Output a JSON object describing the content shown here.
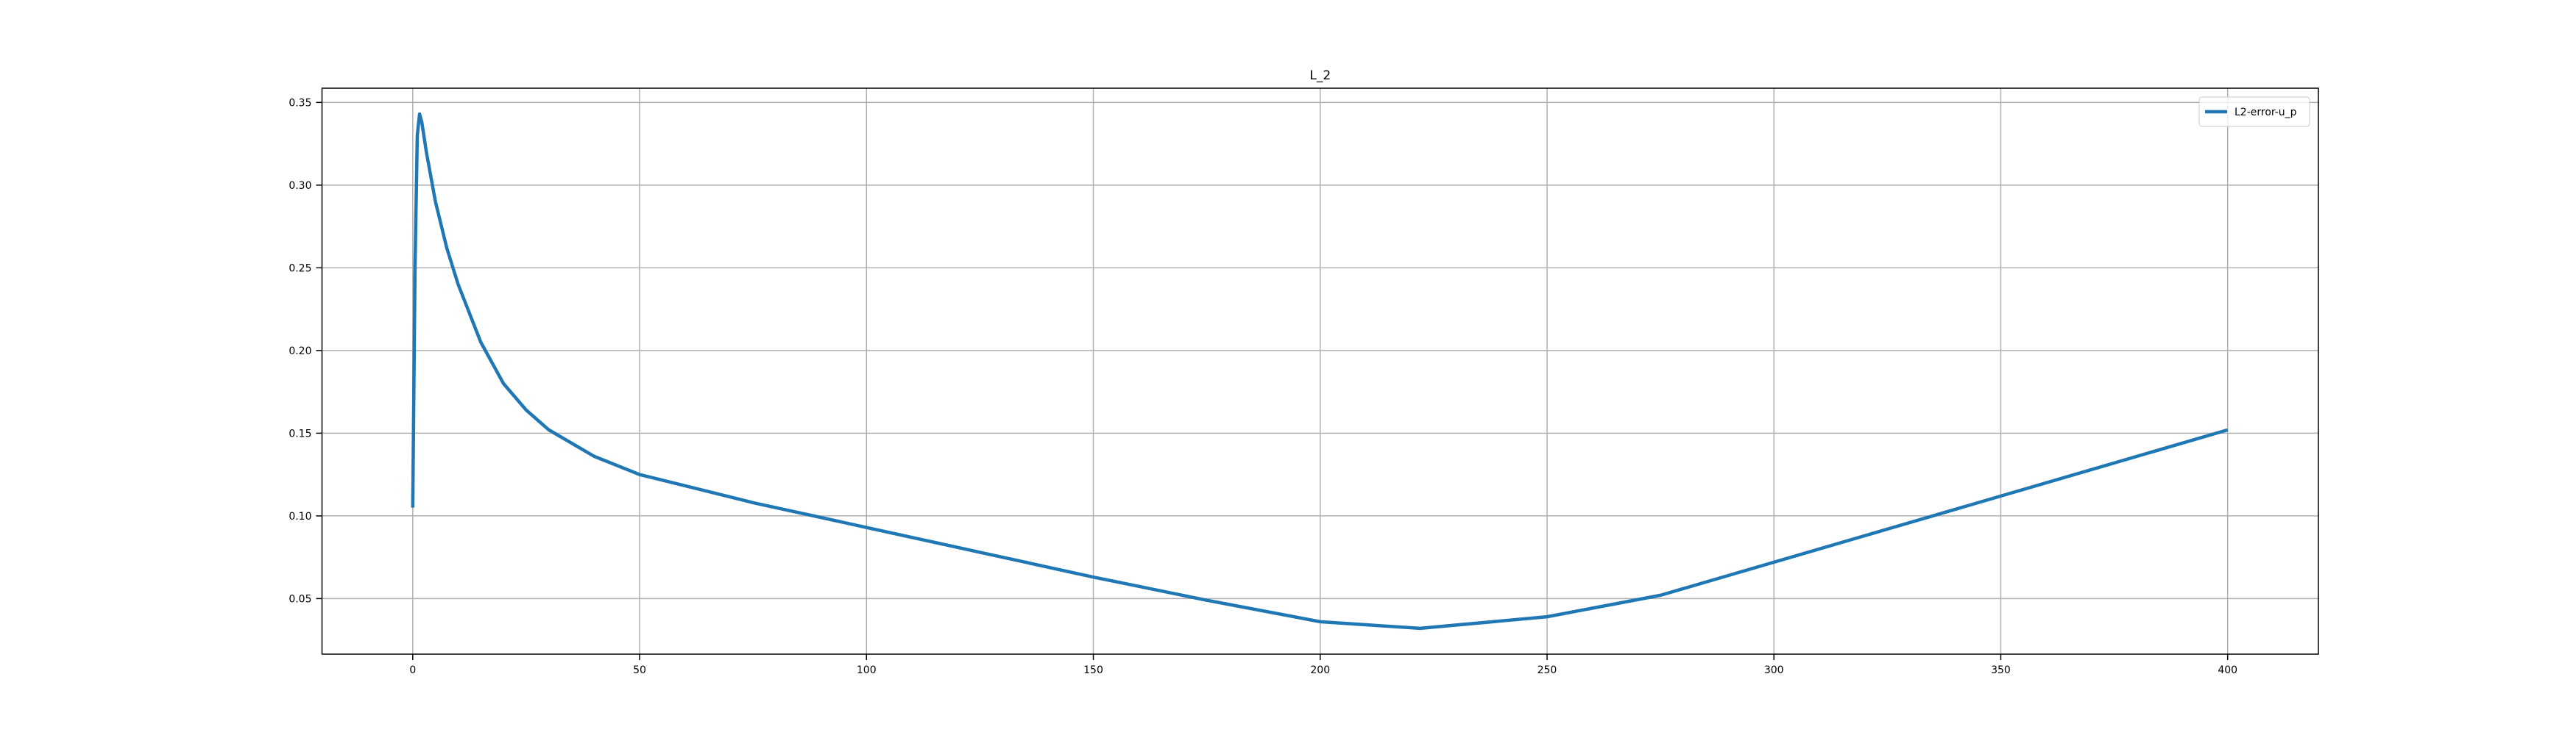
{
  "chart_data": {
    "type": "line",
    "title": "L_2",
    "x": [
      0,
      0.5,
      1,
      1.5,
      2,
      3,
      5,
      7.5,
      10,
      15,
      20,
      25,
      30,
      40,
      50,
      75,
      100,
      125,
      150,
      175,
      200,
      222,
      250,
      275,
      300,
      325,
      350,
      375,
      400
    ],
    "series": [
      {
        "name": "L2-error-u_p",
        "color": "#1f77b4",
        "values": [
          0.105,
          0.25,
          0.33,
          0.343,
          0.338,
          0.32,
          0.29,
          0.262,
          0.24,
          0.205,
          0.18,
          0.164,
          0.152,
          0.136,
          0.125,
          0.108,
          0.093,
          0.078,
          0.063,
          0.049,
          0.036,
          0.032,
          0.039,
          0.052,
          0.072,
          0.092,
          0.112,
          0.132,
          0.152
        ]
      }
    ],
    "xlim": [
      -20,
      420
    ],
    "ylim": [
      0.0164,
      0.3586
    ],
    "xticks": [
      0,
      50,
      100,
      150,
      200,
      250,
      300,
      350,
      400
    ],
    "yticks": [
      0.05,
      {
        "value": 0.1,
        "label": "0.10"
      },
      0.15,
      {
        "value": 0.2,
        "label": "0.20"
      },
      0.25,
      {
        "value": 0.3,
        "label": "0.30"
      },
      0.35
    ],
    "grid": true,
    "legend": "upper right"
  }
}
